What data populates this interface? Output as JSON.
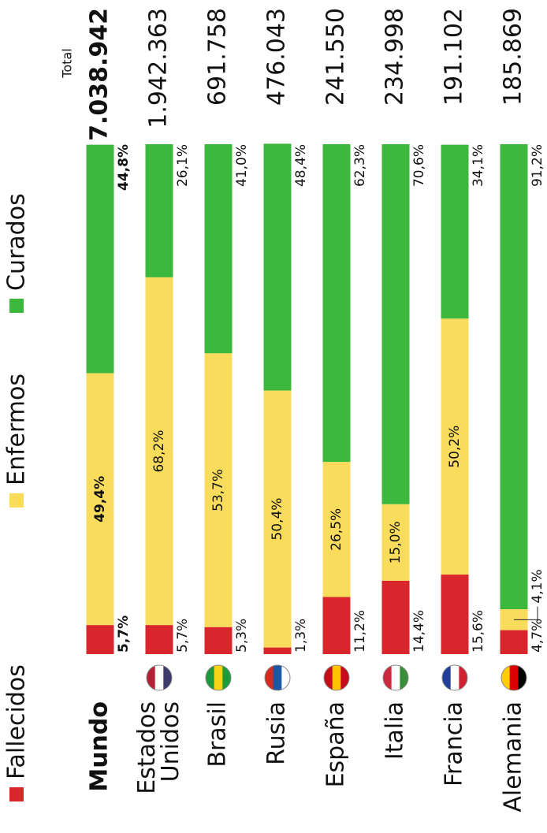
{
  "chart_data": {
    "type": "bar",
    "stacked": true,
    "orientation": "horizontal",
    "categories": [
      "Mundo",
      "Estados Unidos",
      "Brasil",
      "Rusia",
      "España",
      "Italia",
      "Francia",
      "Alemania"
    ],
    "xlim": [
      0,
      100
    ],
    "series": [
      {
        "name": "Fallecidos",
        "color": "#d9262c",
        "values": [
          5.7,
          5.7,
          5.3,
          1.3,
          11.2,
          14.4,
          15.6,
          4.7
        ],
        "value_labels": [
          "5,7%",
          "5,7%",
          "5,3%",
          "1,3%",
          "11,2%",
          "14,4%",
          "15,6%",
          "4,7%"
        ]
      },
      {
        "name": "Enfermos",
        "color": "#f9dc5c",
        "values": [
          49.4,
          68.2,
          53.7,
          50.4,
          26.5,
          15.0,
          50.2,
          4.1
        ],
        "value_labels": [
          "49,4%",
          "68,2%",
          "53,7%",
          "50,4%",
          "26,5%",
          "15,0%",
          "50,2%",
          "4,1%"
        ]
      },
      {
        "name": "Curados",
        "color": "#3cb93c",
        "values": [
          44.8,
          26.1,
          41.0,
          48.4,
          62.3,
          70.6,
          34.1,
          91.2
        ],
        "value_labels": [
          "44,8%",
          "26,1%",
          "41,0%",
          "48,4%",
          "62,3%",
          "70,6%",
          "34,1%",
          "91,2%"
        ]
      }
    ],
    "totals": {
      "label": "Total",
      "values": [
        7038942,
        1942363,
        691758,
        476043,
        241550,
        234998,
        191102,
        185869
      ],
      "value_labels": [
        "7.038.942",
        "1.942.363",
        "691.758",
        "476.043",
        "241.550",
        "234.998",
        "191.102",
        "185.869"
      ]
    }
  }
}
